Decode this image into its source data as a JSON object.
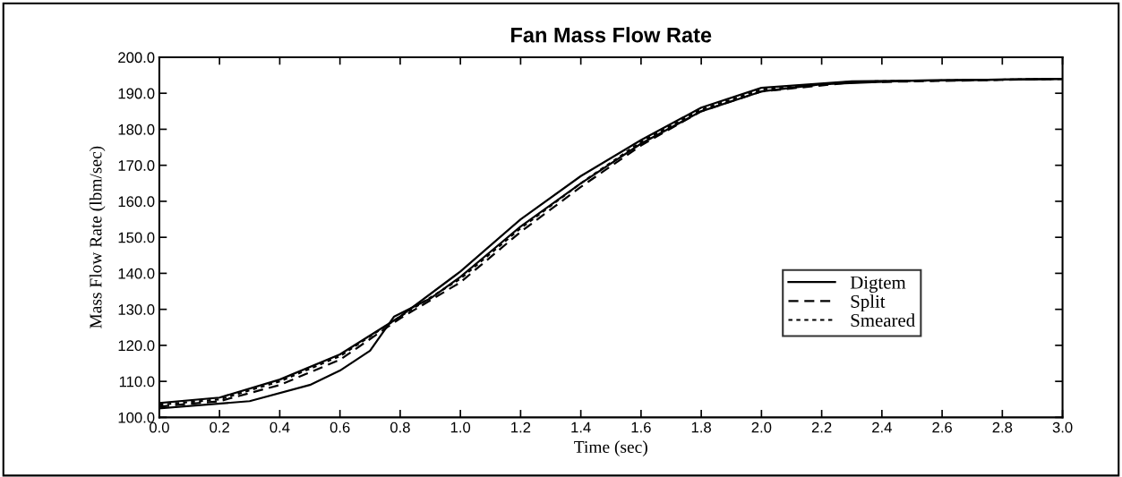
{
  "chart_data": {
    "type": "line",
    "title": "Fan Mass Flow Rate",
    "xlabel": "Time (sec)",
    "ylabel": "Mass Flow Rate (lbm/sec)",
    "series": [
      {
        "name": "Digtem",
        "color": "#000000",
        "line_style": "solid",
        "x": [
          0.0,
          0.3,
          0.5,
          0.6,
          0.7,
          0.78,
          0.9,
          1.0,
          1.1,
          1.2,
          1.4,
          1.6,
          1.8,
          2.0,
          2.2,
          2.5,
          3.0
        ],
        "values": [
          102.5,
          104.5,
          109,
          113,
          118.5,
          128,
          133,
          139,
          146,
          153,
          165,
          176,
          185,
          190.5,
          192.5,
          193.5,
          194
        ]
      },
      {
        "color": "#000000",
        "line_style": "solid",
        "x": [
          0.0,
          0.2,
          0.4,
          0.6,
          0.8,
          1.0,
          1.2,
          1.4,
          1.6,
          1.8,
          2.0,
          2.3,
          3.0
        ],
        "values": [
          104,
          105.5,
          110.5,
          117.5,
          128,
          140.5,
          155,
          167,
          177,
          186,
          191.5,
          193.3,
          194
        ]
      },
      {
        "name": "Split",
        "color": "#000000",
        "line_style": "dashed",
        "x": [
          0.0,
          0.2,
          0.4,
          0.6,
          0.8,
          1.0,
          1.2,
          1.4,
          1.6,
          1.8,
          2.0,
          2.3,
          3.0
        ],
        "values": [
          103,
          104.5,
          109,
          116,
          127.5,
          137.5,
          151.5,
          164,
          175.5,
          185,
          190.5,
          193,
          194
        ]
      },
      {
        "name": "Smeared",
        "color": "#000000",
        "line_style": "dotted",
        "x": [
          0.0,
          0.2,
          0.4,
          0.6,
          0.8,
          1.0,
          1.2,
          1.4,
          1.6,
          1.8,
          2.0,
          2.3,
          3.0
        ],
        "values": [
          103.5,
          105,
          110,
          117,
          128,
          138.5,
          152.5,
          165,
          176.5,
          185.5,
          191,
          193.2,
          194
        ]
      }
    ],
    "xlim": [
      0.0,
      3.0
    ],
    "xticks": [
      {
        "value": 0,
        "label": "0.0"
      },
      0.2,
      0.4,
      0.6,
      0.8,
      {
        "value": 1,
        "label": "1.0"
      },
      1.2,
      1.4,
      1.6,
      1.8,
      {
        "value": 2,
        "label": "2.0"
      },
      2.2,
      2.4,
      2.6,
      2.8,
      {
        "value": 3,
        "label": "3.0"
      }
    ],
    "ylim": [
      100,
      200
    ],
    "yticks": [
      {
        "value": 100,
        "label": "100.0"
      },
      {
        "value": 110,
        "label": "110.0"
      },
      {
        "value": 120,
        "label": "120.0"
      },
      {
        "value": 130,
        "label": "130.0"
      },
      {
        "value": 140,
        "label": "140.0"
      },
      {
        "value": 150,
        "label": "150.0"
      },
      {
        "value": 160,
        "label": "160.0"
      },
      {
        "value": 170,
        "label": "170.0"
      },
      {
        "value": 180,
        "label": "180.0"
      },
      {
        "value": 190,
        "label": "190.0"
      },
      {
        "value": 200,
        "label": "200.0"
      }
    ],
    "grid": false,
    "legend": "right",
    "marker": "none"
  }
}
